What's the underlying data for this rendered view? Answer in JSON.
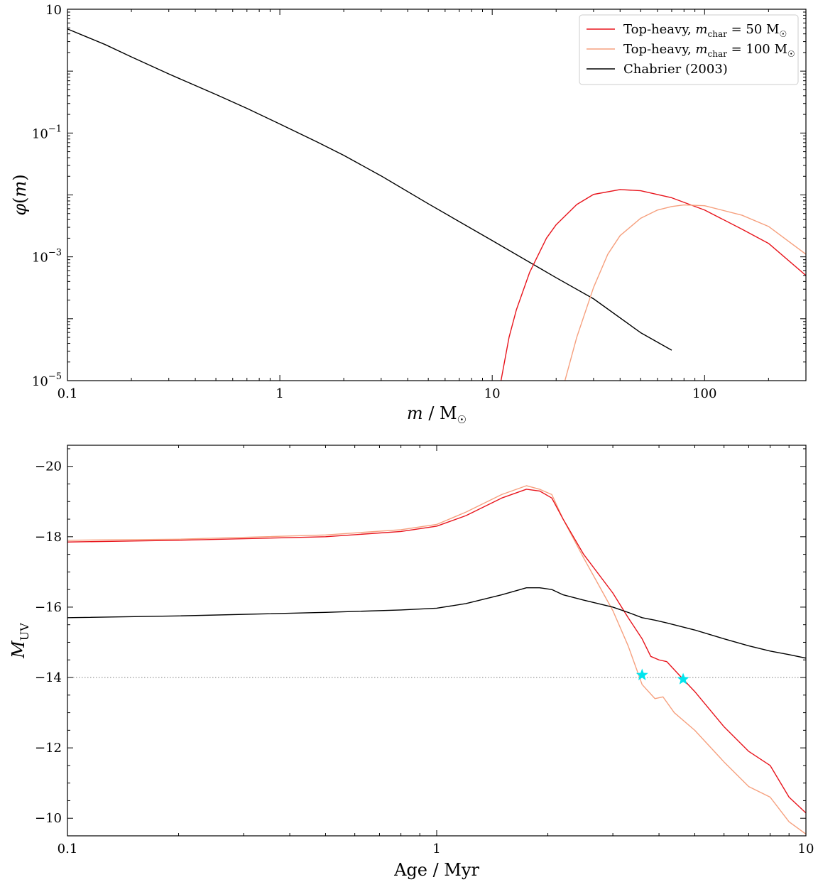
{
  "chart_data": [
    {
      "type": "line",
      "xscale": "log",
      "yscale": "log",
      "xlim": [
        0.1,
        300
      ],
      "ylim": [
        1e-05,
        10
      ],
      "xlabel": "m / M☉",
      "ylabel": "φ(m)",
      "x_tick_labels": [
        {
          "value": 0.1,
          "label": "0.1"
        },
        {
          "value": 1,
          "label": "1"
        },
        {
          "value": 10,
          "label": "10"
        },
        {
          "value": 100,
          "label": "100"
        }
      ],
      "y_tick_labels": [
        {
          "value": 10,
          "base": "10",
          "exp": ""
        },
        {
          "value": 0.1,
          "base": "10",
          "exp": "−1"
        },
        {
          "value": 0.001,
          "base": "10",
          "exp": "−3"
        },
        {
          "value": 1e-05,
          "base": "10",
          "exp": "−5"
        }
      ],
      "legend": {
        "placement": "top-right",
        "entries": [
          {
            "prefix": "Top-heavy, ",
            "m": "m",
            "sub": "char",
            "suffix": " = 50 M",
            "sun": true,
            "color": "#e8141c"
          },
          {
            "prefix": "Top-heavy, ",
            "m": "m",
            "sub": "char",
            "suffix": " = 100 M",
            "sun": true,
            "color": "#f6a07e"
          },
          {
            "prefix": "Chabrier (2003)",
            "m": "",
            "sub": "",
            "suffix": "",
            "sun": false,
            "color": "#000000"
          }
        ]
      },
      "series": [
        {
          "name": "Chabrier (2003)",
          "color": "#000000",
          "x": [
            0.1,
            0.15,
            0.2,
            0.3,
            0.5,
            0.7,
            1.0,
            1.5,
            2,
            3,
            5,
            10,
            20,
            30,
            50,
            70
          ],
          "y": [
            4.8,
            2.7,
            1.7,
            0.9,
            0.42,
            0.25,
            0.14,
            0.0715,
            0.0436,
            0.0203,
            0.0072,
            0.00183,
            0.00046,
            0.00021,
            5.95e-05,
            3.1e-05
          ]
        },
        {
          "name": "Top-heavy, m_char = 50 M☉",
          "color": "#e8141c",
          "x": [
            11,
            12,
            13,
            15,
            18,
            20,
            25,
            30,
            40,
            50,
            70,
            100,
            150,
            200,
            300
          ],
          "y": [
            1e-05,
            5e-05,
            0.00014,
            0.00056,
            0.002,
            0.0033,
            0.007,
            0.0102,
            0.0122,
            0.0117,
            0.009,
            0.0057,
            0.0028,
            0.00165,
            0.0005
          ]
        },
        {
          "name": "Top-heavy, m_char = 100 M☉",
          "color": "#f6a07e",
          "x": [
            22,
            25,
            30,
            35,
            40,
            50,
            60,
            70,
            80,
            100,
            150,
            200,
            300
          ],
          "y": [
            1e-05,
            5e-05,
            0.00032,
            0.0011,
            0.0022,
            0.0042,
            0.0057,
            0.0065,
            0.0069,
            0.0067,
            0.0047,
            0.0031,
            0.0011
          ]
        }
      ]
    },
    {
      "type": "line",
      "xscale": "log",
      "yscale": "linear",
      "xlim": [
        0.1,
        10
      ],
      "ylim": [
        -9.5,
        -20.6
      ],
      "xlabel": "Age / Myr",
      "ylabel": "M_UV",
      "x_tick_labels": [
        {
          "value": 0.1,
          "label": "0.1"
        },
        {
          "value": 1,
          "label": "1"
        },
        {
          "value": 10,
          "label": "10"
        }
      ],
      "y_tick_labels": [
        {
          "value": -20,
          "label": "−20"
        },
        {
          "value": -18,
          "label": "−18"
        },
        {
          "value": -16,
          "label": "−16"
        },
        {
          "value": -14,
          "label": "−14"
        },
        {
          "value": -12,
          "label": "−12"
        },
        {
          "value": -10,
          "label": "−10"
        }
      ],
      "reference_line": {
        "y": -14,
        "style": "dotted"
      },
      "markers": [
        {
          "x": 3.6,
          "y": -14.07,
          "color": "#00e5ee"
        },
        {
          "x": 4.65,
          "y": -13.95,
          "color": "#00e5ee"
        }
      ],
      "series": [
        {
          "name": "Top-heavy, m_char = 100 M☉",
          "color": "#f6a07e",
          "x": [
            0.1,
            0.2,
            0.5,
            0.8,
            1.0,
            1.2,
            1.5,
            1.75,
            1.9,
            2.05,
            2.2,
            2.5,
            3.0,
            3.3,
            3.6,
            3.9,
            4.1,
            4.4,
            5.0,
            6.0,
            7.0,
            8.0,
            9.0,
            10.0
          ],
          "y": [
            -17.9,
            -17.93,
            -18.05,
            -18.2,
            -18.35,
            -18.7,
            -19.2,
            -19.45,
            -19.35,
            -19.2,
            -18.5,
            -17.4,
            -15.9,
            -14.9,
            -13.8,
            -13.4,
            -13.45,
            -13.0,
            -12.5,
            -11.6,
            -10.9,
            -10.6,
            -9.9,
            -9.55
          ]
        },
        {
          "name": "Top-heavy, m_char = 50 M☉",
          "color": "#e8141c",
          "x": [
            0.1,
            0.2,
            0.5,
            0.8,
            1.0,
            1.2,
            1.5,
            1.75,
            1.9,
            2.05,
            2.2,
            2.5,
            3.0,
            3.3,
            3.6,
            3.8,
            4.0,
            4.2,
            4.65,
            5.0,
            6.0,
            7.0,
            8.0,
            9.0,
            10.0
          ],
          "y": [
            -17.85,
            -17.9,
            -18.0,
            -18.15,
            -18.3,
            -18.6,
            -19.1,
            -19.35,
            -19.3,
            -19.1,
            -18.5,
            -17.5,
            -16.4,
            -15.7,
            -15.1,
            -14.6,
            -14.5,
            -14.45,
            -13.95,
            -13.6,
            -12.6,
            -11.9,
            -11.5,
            -10.6,
            -10.15
          ]
        },
        {
          "name": "Chabrier (2003)",
          "color": "#000000",
          "x": [
            0.1,
            0.2,
            0.5,
            0.8,
            1.0,
            1.2,
            1.5,
            1.75,
            1.9,
            2.05,
            2.2,
            2.5,
            3.0,
            3.3,
            3.6,
            3.9,
            4.2,
            5.0,
            6.0,
            7.0,
            8.0,
            9.0,
            10.0
          ],
          "y": [
            -15.7,
            -15.75,
            -15.85,
            -15.92,
            -15.97,
            -16.1,
            -16.35,
            -16.55,
            -16.55,
            -16.5,
            -16.35,
            -16.2,
            -16.0,
            -15.85,
            -15.7,
            -15.63,
            -15.55,
            -15.35,
            -15.1,
            -14.9,
            -14.75,
            -14.65,
            -14.55
          ]
        }
      ]
    }
  ]
}
